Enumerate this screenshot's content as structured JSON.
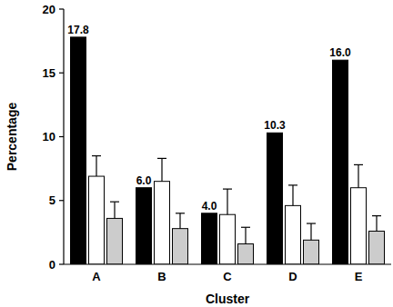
{
  "chart_data": {
    "type": "bar",
    "x_label": "Cluster",
    "y_label": "Percentage",
    "categories": [
      "A",
      "B",
      "C",
      "D",
      "E"
    ],
    "series": [
      {
        "color": "#000000",
        "values": [
          17.8,
          6.0,
          4.0,
          10.3,
          16.0
        ],
        "value_labels": [
          "17.8",
          "6.0",
          "4.0",
          "10.3",
          "16.0"
        ],
        "data_labels": true
      },
      {
        "color": "#ffffff",
        "values": [
          6.9,
          6.5,
          3.9,
          4.6,
          6.0
        ],
        "errors": [
          1.6,
          1.8,
          2.0,
          1.6,
          1.8
        ]
      },
      {
        "color": "#cccccc",
        "values": [
          3.6,
          2.8,
          1.6,
          1.9,
          2.6
        ],
        "errors": [
          1.3,
          1.2,
          1.3,
          1.3,
          1.2
        ]
      }
    ],
    "ylim": [
      0,
      20
    ],
    "yticks": [
      0,
      5,
      10,
      15,
      20
    ],
    "grid": false
  }
}
